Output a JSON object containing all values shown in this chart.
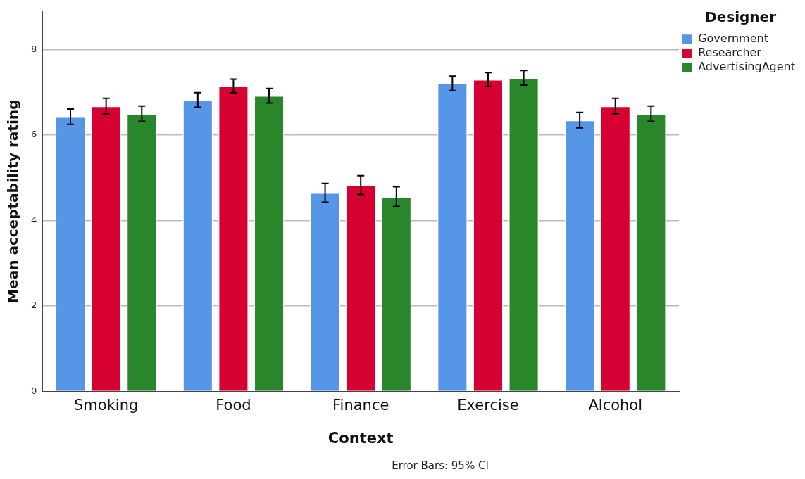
{
  "chart_data": {
    "type": "bar",
    "xlabel": "Context",
    "ylabel": "Mean acceptability rating",
    "legend_title": "Designer",
    "categories": [
      "Smoking",
      "Food",
      "Finance",
      "Exercise",
      "Alcohol"
    ],
    "series": [
      {
        "name": "Government",
        "color": "#5596e6",
        "values": [
          6.43,
          6.82,
          4.65,
          7.21,
          6.35
        ],
        "errors": [
          0.18,
          0.17,
          0.22,
          0.17,
          0.18
        ]
      },
      {
        "name": "Researcher",
        "color": "#d60032",
        "values": [
          6.68,
          7.15,
          4.83,
          7.3,
          6.68
        ],
        "errors": [
          0.18,
          0.16,
          0.22,
          0.16,
          0.18
        ]
      },
      {
        "name": "AdvertisingAgent",
        "color": "#2a862a",
        "values": [
          6.5,
          6.92,
          4.56,
          7.34,
          6.5
        ],
        "errors": [
          0.18,
          0.17,
          0.23,
          0.17,
          0.18
        ]
      }
    ],
    "ylim": [
      0,
      8.9
    ],
    "yticks": [
      0,
      2,
      4,
      6,
      8
    ],
    "grid": "y",
    "legend": "top right",
    "annotations": [
      "Error Bars: 95% CI"
    ]
  }
}
